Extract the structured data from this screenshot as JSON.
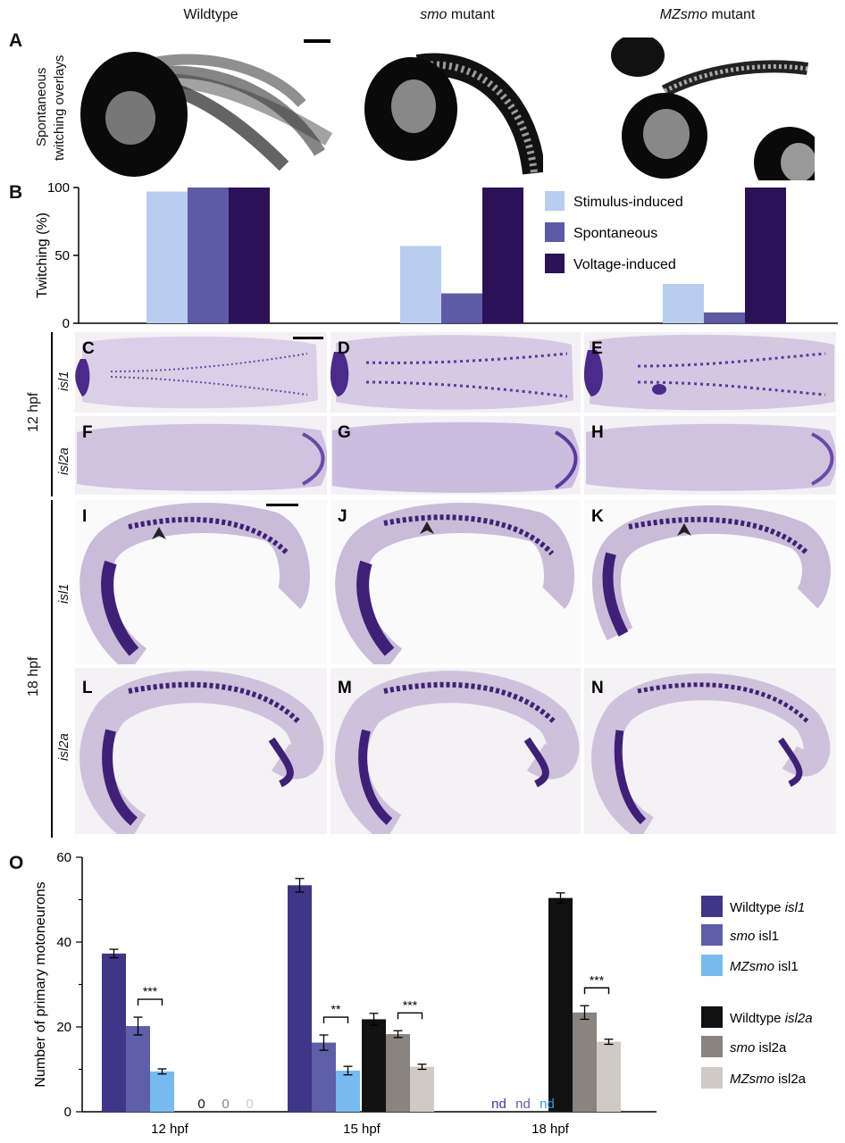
{
  "columns": [
    {
      "pre": "",
      "italic": "",
      "post": "Wildtype"
    },
    {
      "pre": "",
      "italic": "smo",
      "post": " mutant"
    },
    {
      "pre": "",
      "italic": "MZsmo",
      "post": " mutant"
    }
  ],
  "panel_letters": {
    "A": "A",
    "B": "B",
    "C": "C",
    "D": "D",
    "E": "E",
    "F": "F",
    "G": "G",
    "H": "H",
    "I": "I",
    "J": "J",
    "K": "K",
    "L": "L",
    "M": "M",
    "N": "N",
    "O": "O"
  },
  "panelA": {
    "ylabel_line1": "Spontaneous",
    "ylabel_line2": "twitching overlays"
  },
  "row_labels": {
    "hpf12": "12 hpf",
    "hpf18": "18 hpf",
    "isl1": "isl1",
    "isl2a": "isl2a"
  },
  "colors": {
    "stim": "#b8cdef",
    "spont": "#5d5aa6",
    "volt": "#2a1158",
    "wt_isl1": "#3f3689",
    "smo_isl1": "#5f5ea8",
    "mz_isl1": "#77baf0",
    "wt_isl2a": "#111111",
    "smo_isl2a": "#8a8480",
    "mz_isl2a": "#cfcac5",
    "stain": "#4a2a8a"
  },
  "chart_data": [
    {
      "type": "bar",
      "panel": "B",
      "ylabel": "Twitching (%)",
      "ylim": [
        0,
        100
      ],
      "yticks": [
        "0",
        "50",
        "100"
      ],
      "categories": [
        "Wildtype",
        "smo mutant",
        "MZsmo mutant"
      ],
      "series": [
        {
          "name": "Stimulus-induced",
          "values": [
            97,
            57,
            29
          ]
        },
        {
          "name": "Spontaneous",
          "values": [
            100,
            22,
            8
          ]
        },
        {
          "name": "Voltage-induced",
          "values": [
            100,
            100,
            100
          ]
        }
      ],
      "legend_position": "top-right"
    },
    {
      "type": "bar",
      "panel": "O",
      "ylabel": "Number of primary motoneurons",
      "ylim": [
        0,
        60
      ],
      "yticks": [
        "0",
        "20",
        "40",
        "60"
      ],
      "categories": [
        "12 hpf",
        "15 hpf",
        "18 hpf"
      ],
      "series": [
        {
          "name": "Wildtype isl1",
          "values": [
            37.3,
            53.4,
            null
          ],
          "errors": [
            1.0,
            1.6,
            null
          ]
        },
        {
          "name": "smo isl1",
          "values": [
            20.2,
            16.3,
            null
          ],
          "errors": [
            2.1,
            1.8,
            null
          ]
        },
        {
          "name": "MZsmo isl1",
          "values": [
            9.5,
            9.7,
            null
          ],
          "errors": [
            0.6,
            1.0,
            null
          ]
        },
        {
          "name": "Wildtype isl2a",
          "values": [
            0,
            21.8,
            50.4
          ],
          "errors": [
            null,
            1.4,
            1.2
          ]
        },
        {
          "name": "smo isl2a",
          "values": [
            0,
            18.3,
            23.4
          ],
          "errors": [
            null,
            0.8,
            1.6
          ]
        },
        {
          "name": "MZsmo isl2a",
          "values": [
            0,
            10.6,
            16.5
          ],
          "errors": [
            null,
            0.6,
            0.6
          ]
        }
      ],
      "zero_labels": [
        "0",
        "0",
        "0"
      ],
      "nd_labels": [
        "nd",
        "nd",
        "nd"
      ],
      "significance": [
        {
          "group": "12 hpf",
          "between": [
            "smo isl1",
            "MZsmo isl1"
          ],
          "label": "***"
        },
        {
          "group": "15 hpf",
          "between": [
            "smo isl1",
            "MZsmo isl1"
          ],
          "label": "**"
        },
        {
          "group": "15 hpf",
          "between": [
            "smo isl2a",
            "MZsmo isl2a"
          ],
          "label": "***"
        },
        {
          "group": "18 hpf",
          "between": [
            "smo isl2a",
            "MZsmo isl2a"
          ],
          "label": "***"
        }
      ],
      "legend": [
        {
          "pre": "Wildtype ",
          "italic": "isl1"
        },
        {
          "pre": "",
          "italic": "smo",
          "post": " isl1"
        },
        {
          "pre": "",
          "italic": "MZsmo",
          "post": " isl1"
        },
        {
          "pre": "Wildtype ",
          "italic": "isl2a"
        },
        {
          "pre": "",
          "italic": "smo",
          "post": " isl2a"
        },
        {
          "pre": "",
          "italic": "MZsmo",
          "post": " isl2a"
        }
      ]
    }
  ]
}
